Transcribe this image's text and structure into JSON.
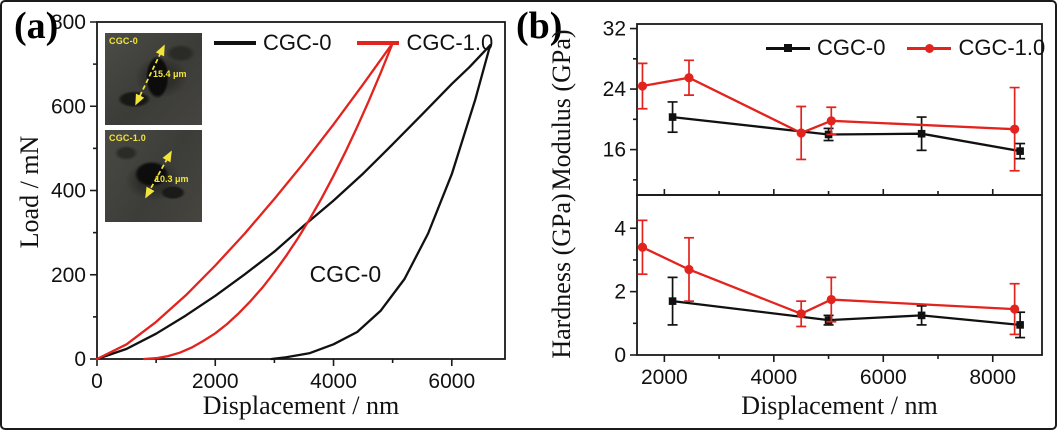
{
  "colors": {
    "cgc0": "#111111",
    "cgc10": "#e2231e",
    "inset_annotation": "#f2e53a"
  },
  "panel_a": {
    "label": "(a)",
    "xlabel": "Displacement / nm",
    "ylabel": "Load / mN",
    "legend": [
      {
        "label": "CGC-0"
      },
      {
        "label": "CGC-1.0"
      }
    ],
    "annotation": "CGC-0",
    "insets": [
      {
        "label": "CGC-0",
        "measurement": "15.4 μm"
      },
      {
        "label": "CGC-1.0",
        "measurement": "10.3 μm"
      }
    ]
  },
  "panel_b": {
    "label": "(b)",
    "xlabel": "Displacement / nm",
    "top_ylabel": "Modulus (GPa)",
    "bottom_ylabel": "Hardness (GPa)",
    "legend": [
      {
        "label": "CGC-0"
      },
      {
        "label": "CGC-1.0"
      }
    ]
  },
  "chart_data": [
    {
      "type": "line",
      "panel": "a",
      "xlabel": "Displacement / nm",
      "ylabel": "Load / mN",
      "xlim": [
        0,
        6900
      ],
      "ylim": [
        0,
        800
      ],
      "xticks": [
        0,
        2000,
        4000,
        6000
      ],
      "yticks": [
        0,
        200,
        400,
        600,
        800
      ],
      "xticks_minor": [
        1000,
        3000,
        5000
      ],
      "yticks_minor": [
        100,
        300,
        500,
        700
      ],
      "legend_position": "top-left-inside",
      "annotation": {
        "text": "CGC-0",
        "x": 4200,
        "y": 183
      },
      "series": [
        {
          "name": "CGC-0 loading",
          "color": "#111111",
          "points": [
            [
              0,
              0
            ],
            [
              500,
              24
            ],
            [
              1000,
              60
            ],
            [
              1500,
              103
            ],
            [
              2000,
              150
            ],
            [
              2500,
              201
            ],
            [
              3000,
              255
            ],
            [
              3500,
              317
            ],
            [
              4000,
              376
            ],
            [
              4500,
              440
            ],
            [
              5000,
              510
            ],
            [
              5500,
              581
            ],
            [
              6000,
              653
            ],
            [
              6300,
              693
            ],
            [
              6650,
              745
            ]
          ]
        },
        {
          "name": "CGC-0 unloading",
          "color": "#111111",
          "points": [
            [
              6650,
              745
            ],
            [
              6400,
              617
            ],
            [
              6000,
              439
            ],
            [
              5600,
              298
            ],
            [
              5200,
              190
            ],
            [
              4800,
              115
            ],
            [
              4400,
              64
            ],
            [
              4000,
              35
            ],
            [
              3600,
              14
            ],
            [
              3200,
              4
            ],
            [
              2950,
              0
            ]
          ]
        },
        {
          "name": "CGC-1.0 loading",
          "color": "#e2231e",
          "points": [
            [
              0,
              0
            ],
            [
              500,
              35
            ],
            [
              1000,
              88
            ],
            [
              1500,
              151
            ],
            [
              2000,
              222
            ],
            [
              2500,
              298
            ],
            [
              3000,
              380
            ],
            [
              3500,
              466
            ],
            [
              4000,
              557
            ],
            [
              4500,
              652
            ],
            [
              5000,
              750
            ]
          ]
        },
        {
          "name": "CGC-1.0 unloading",
          "color": "#e2231e",
          "points": [
            [
              5000,
              750
            ],
            [
              4800,
              680
            ],
            [
              4600,
              614
            ],
            [
              4400,
              551
            ],
            [
              4200,
              491
            ],
            [
              4000,
              435
            ],
            [
              3800,
              382
            ],
            [
              3600,
              333
            ],
            [
              3400,
              287
            ],
            [
              3200,
              245
            ],
            [
              3000,
              206
            ],
            [
              2800,
              170
            ],
            [
              2600,
              138
            ],
            [
              2400,
              109
            ],
            [
              2200,
              83
            ],
            [
              2000,
              61
            ],
            [
              1800,
              43
            ],
            [
              1600,
              27
            ],
            [
              1400,
              15
            ],
            [
              1200,
              7
            ],
            [
              1000,
              2
            ],
            [
              800,
              0
            ]
          ]
        }
      ]
    },
    {
      "type": "line",
      "panel": "b-top",
      "ylabel": "Modulus (GPa)",
      "xlim": [
        1500,
        8900
      ],
      "ylim": [
        10,
        32.6
      ],
      "xticks": [
        2000,
        4000,
        6000,
        8000
      ],
      "yticks": [
        16,
        24,
        32
      ],
      "xticks_minor": [
        3000,
        5000,
        7000
      ],
      "yticks_minor": [
        12,
        20,
        28
      ],
      "series": [
        {
          "name": "CGC-0",
          "color": "#111111",
          "marker": "square",
          "x": [
            2150,
            5000,
            6700,
            8500
          ],
          "y": [
            20.3,
            18.0,
            18.1,
            15.8
          ],
          "yerr": [
            2.0,
            0.8,
            2.2,
            1.0
          ]
        },
        {
          "name": "CGC-1.0",
          "color": "#e2231e",
          "marker": "circle",
          "x": [
            1600,
            2450,
            4500,
            5050,
            8400
          ],
          "y": [
            24.4,
            25.5,
            18.2,
            19.8,
            18.7
          ],
          "yerr": [
            3.0,
            2.3,
            3.5,
            1.8,
            5.5
          ]
        }
      ]
    },
    {
      "type": "line",
      "panel": "b-bottom",
      "xlabel": "Displacement / nm",
      "ylabel": "Hardness (GPa)",
      "xlim": [
        1500,
        8900
      ],
      "ylim": [
        0,
        5.05
      ],
      "xticks": [
        2000,
        4000,
        6000,
        8000
      ],
      "yticks": [
        0,
        2,
        4
      ],
      "xticks_minor": [
        3000,
        5000,
        7000
      ],
      "yticks_minor": [
        1,
        3
      ],
      "series": [
        {
          "name": "CGC-0",
          "color": "#111111",
          "marker": "square",
          "x": [
            2150,
            5000,
            6700,
            8500
          ],
          "y": [
            1.7,
            1.1,
            1.25,
            0.95
          ],
          "yerr": [
            0.75,
            0.15,
            0.3,
            0.4
          ]
        },
        {
          "name": "CGC-1.0",
          "color": "#e2231e",
          "marker": "circle",
          "x": [
            1600,
            2450,
            4500,
            5050,
            8400
          ],
          "y": [
            3.4,
            2.7,
            1.3,
            1.75,
            1.45
          ],
          "yerr": [
            0.85,
            1.0,
            0.4,
            0.7,
            0.8
          ]
        }
      ]
    }
  ]
}
